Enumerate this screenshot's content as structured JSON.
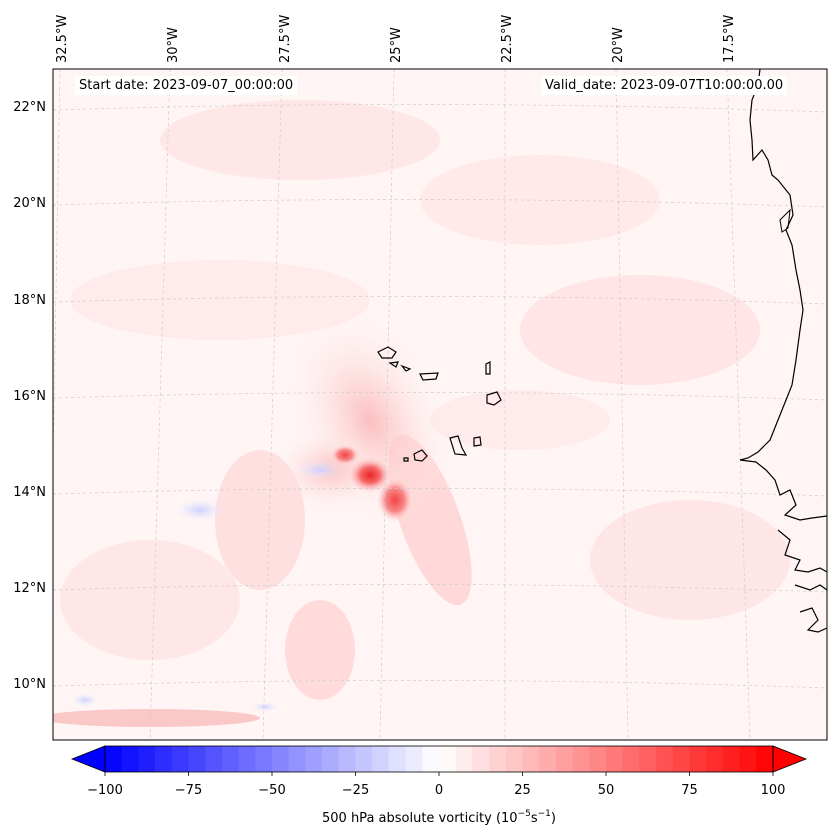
{
  "map": {
    "start_date_text": "Start date: 2023-09-07_00:00:00",
    "valid_date_text": "Valid_date: 2023-09-07T10:00:00.00",
    "lon_labels": [
      "32.5°W",
      "30°W",
      "27.5°W",
      "25°W",
      "22.5°W",
      "20°W",
      "17.5°W"
    ],
    "lat_labels": [
      "22°N",
      "20°N",
      "18°N",
      "16°N",
      "14°N",
      "12°N",
      "10°N"
    ],
    "colorbar": {
      "label_main": "500 hPa absolute vorticity (10",
      "label_exp1": "−5",
      "label_mid": "s",
      "label_exp2": "−1",
      "label_end": ")",
      "ticks": [
        "−100",
        "−75",
        "−50",
        "−25",
        "0",
        "25",
        "50",
        "75",
        "100"
      ],
      "range": [
        -100,
        100
      ]
    },
    "colors": {
      "negative": "#0000ff",
      "neutral": "#ffffff",
      "positive": "#ff0000",
      "coast": "#000000",
      "grid": "#cccccc"
    }
  }
}
